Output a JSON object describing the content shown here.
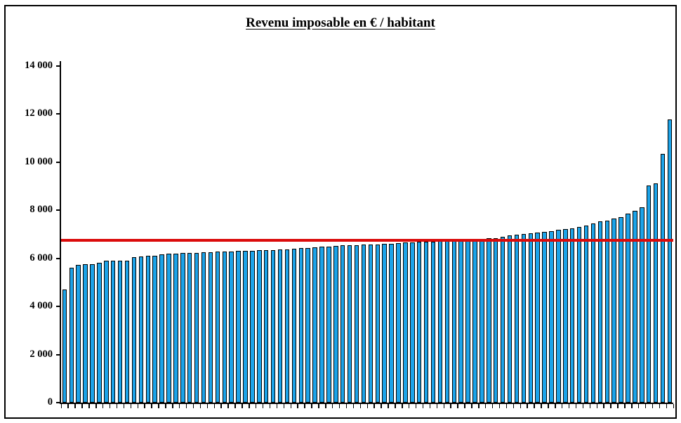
{
  "page": {
    "background": "#ffffff",
    "frame_border_color": "#000000"
  },
  "chart_data": {
    "type": "bar",
    "title": "Revenu imposable en € / habitant",
    "xlabel": "",
    "ylabel": "",
    "ylim": [
      0,
      14000
    ],
    "grid": false,
    "legend": null,
    "bar_color": "#1CA3E8",
    "bar_border_color": "#000000",
    "axis_color": "#000000",
    "y_ticks": [
      {
        "value": 0,
        "label": "0"
      },
      {
        "value": 2000,
        "label": "2 000"
      },
      {
        "value": 4000,
        "label": "4 000"
      },
      {
        "value": 6000,
        "label": "6 000"
      },
      {
        "value": 8000,
        "label": "8 000"
      },
      {
        "value": 10000,
        "label": "10 000"
      },
      {
        "value": 12000,
        "label": "12 000"
      },
      {
        "value": 14000,
        "label": "14 000"
      }
    ],
    "reference_line": {
      "name": "average-income-line",
      "value": 6750,
      "color": "#DB0B0B",
      "thickness": 4
    },
    "values": [
      4720,
      5620,
      5740,
      5750,
      5760,
      5820,
      5890,
      5895,
      5900,
      5910,
      6040,
      6090,
      6110,
      6120,
      6160,
      6200,
      6210,
      6220,
      6230,
      6240,
      6250,
      6260,
      6270,
      6280,
      6290,
      6300,
      6310,
      6320,
      6330,
      6340,
      6350,
      6360,
      6380,
      6400,
      6420,
      6440,
      6460,
      6480,
      6500,
      6520,
      6540,
      6550,
      6560,
      6570,
      6580,
      6590,
      6600,
      6620,
      6640,
      6660,
      6670,
      6680,
      6690,
      6700,
      6710,
      6720,
      6740,
      6750,
      6770,
      6790,
      6810,
      6830,
      6850,
      6900,
      6950,
      6980,
      7010,
      7040,
      7070,
      7110,
      7140,
      7180,
      7220,
      7260,
      7320,
      7380,
      7450,
      7530,
      7560,
      7650,
      7720,
      7870,
      7970,
      8120,
      9020,
      9120,
      10340,
      11780
    ]
  }
}
